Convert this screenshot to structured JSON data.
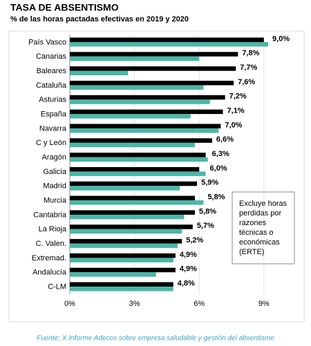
{
  "chart_data": {
    "type": "hbar",
    "title": "TASA DE ABSENTISMO",
    "subtitle": "% de las horas pactadas efectivas en 2019 y 2020",
    "categories": [
      "País Vasco",
      "Canarias",
      "Baleares",
      "Cataluña",
      "Asturias",
      "España",
      "Navarra",
      "C y León",
      "Aragón",
      "Galicia",
      "Madrid",
      "Murcia",
      "Cantabria",
      "La Rioja",
      "C. Valen.",
      "Extremad.",
      "Andalucía",
      "C-LM"
    ],
    "series": [
      {
        "color": "#000000",
        "values": [
          9.0,
          7.8,
          7.7,
          7.6,
          7.2,
          7.1,
          7.0,
          6.6,
          6.3,
          6.0,
          5.9,
          5.8,
          5.8,
          5.7,
          5.2,
          4.9,
          4.9,
          4.8
        ],
        "value_labels": [
          "9,0%",
          "7,8%",
          "7,7%",
          "7,6%",
          "7,2%",
          "7,1%",
          "7,0%",
          "6,6%",
          "6,3%",
          "6,0%",
          "5,9%",
          "5,8%",
          "5,8%",
          "5,7%",
          "5,2%",
          "4,9%",
          "4,9%",
          "4,8%"
        ]
      },
      {
        "color": "#4bb6a7",
        "values": [
          9.2,
          6.0,
          2.7,
          6.2,
          6.5,
          5.6,
          6.9,
          5.8,
          6.4,
          6.3,
          5.1,
          6.2,
          5.3,
          5.2,
          5.0,
          4.8,
          4.0,
          4.8
        ]
      }
    ],
    "xlim": [
      0,
      10
    ],
    "xticks": [
      {
        "value": 0,
        "label": "0%"
      },
      {
        "value": 3,
        "label": "3%"
      },
      {
        "value": 6,
        "label": "6%"
      },
      {
        "value": 9,
        "label": "9%"
      }
    ],
    "grid": true,
    "annotation": [
      "Excluye horas",
      "perdidas por",
      "razones",
      "técnicas o",
      "económicas",
      "(ERTE)"
    ],
    "source": "Fuente: X Informe Adecco sobre empresa saludable y gestión del absentismo"
  }
}
